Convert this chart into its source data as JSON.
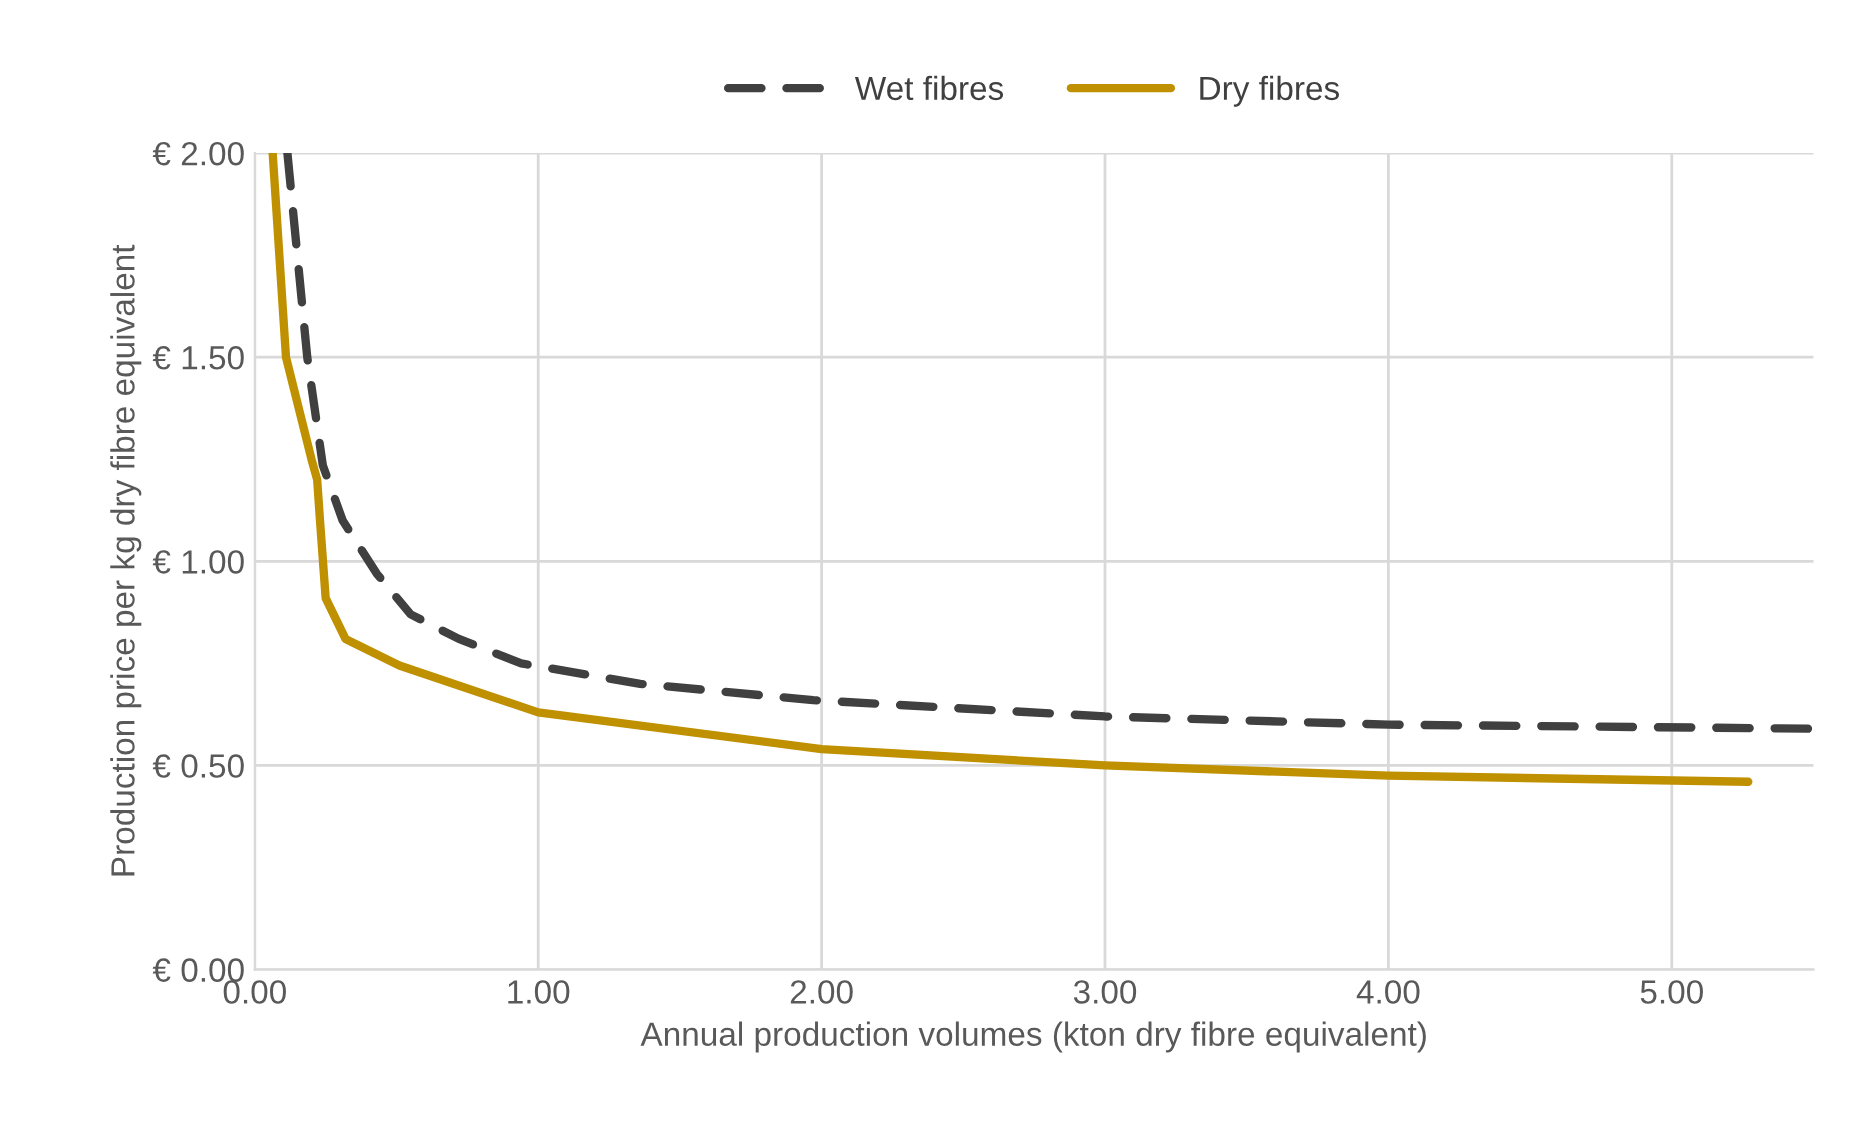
{
  "chart_data": {
    "type": "line",
    "xlabel": "Annual production volumes (kton dry fibre equivalent)",
    "ylabel": "Production price per kg dry fibre equivalent",
    "series": [
      {
        "name": "Wet fibres",
        "color": "#404040",
        "line_style": "dashed",
        "x": [
          0.115,
          0.185,
          0.24,
          0.31,
          0.43,
          0.55,
          0.72,
          0.94,
          1.36,
          1.97,
          3.0,
          4.0,
          5.5
        ],
        "values": [
          2.0,
          1.5,
          1.235,
          1.1,
          0.97,
          0.87,
          0.81,
          0.75,
          0.7,
          0.66,
          0.62,
          0.6,
          0.59
        ]
      },
      {
        "name": "Dry fibres",
        "color": "#bf9000",
        "line_style": "solid",
        "x": [
          0.063,
          0.11,
          0.2,
          0.22,
          0.23,
          0.25,
          0.32,
          0.51,
          1.0,
          2.0,
          3.0,
          4.0,
          5.27
        ],
        "values": [
          2.0,
          1.5,
          1.25,
          1.2,
          1.1,
          0.91,
          0.81,
          0.745,
          0.63,
          0.54,
          0.5,
          0.475,
          0.46
        ]
      }
    ],
    "xlim": [
      0,
      5.5
    ],
    "xticks": [
      {
        "value": 0,
        "label": "0.00"
      },
      {
        "value": 1,
        "label": "1.00"
      },
      {
        "value": 2,
        "label": "2.00"
      },
      {
        "value": 3,
        "label": "3.00"
      },
      {
        "value": 4,
        "label": "4.00"
      },
      {
        "value": 5,
        "label": "5.00"
      }
    ],
    "ylim": [
      0,
      2
    ],
    "yticks": [
      {
        "value": 0,
        "label": "€ 0.00"
      },
      {
        "value": 0.5,
        "label": "€ 0.50"
      },
      {
        "value": 1,
        "label": "€ 1.00"
      },
      {
        "value": 1.5,
        "label": "€ 1.50"
      },
      {
        "value": 2,
        "label": "€ 2.00"
      }
    ],
    "grid": true,
    "legend": "top",
    "marker": "none"
  }
}
